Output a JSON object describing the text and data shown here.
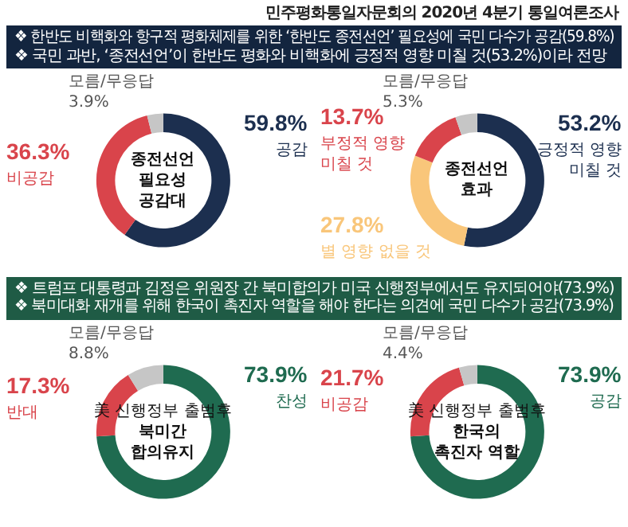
{
  "chart_data": [
    {
      "type": "donut",
      "title": "종전선언\n필요성\n공감대",
      "annotations": [
        "민주평화통일자문회의 2020년 4분기 통일여론조사",
        "❖ 한반도 비핵화와 항구적 평화체제를 위한 ‘한반도 종전선언’ 필요성에 국민 다수가 공감(59.8%)",
        "❖ 국민 과반, ‘종전선언’이 한반도 평화와 비핵화에 긍정적 영향 미칠 것(53.2%)이라 전망"
      ],
      "categories": [
        "공감",
        "비공감",
        "모름/무응답"
      ],
      "values": [
        59.8,
        36.3,
        3.9
      ],
      "colors": [
        "#1c2f4f",
        "#d9444b",
        "#c6c6c6"
      ],
      "value_labels": [
        "59.8%",
        "36.3%",
        "3.9%"
      ]
    },
    {
      "type": "donut",
      "title": "종전선언\n효과",
      "categories": [
        "긍정적 영향\n미칠 것",
        "별 영향 없을 것",
        "부정적 영향\n미칠 것",
        "모름/무응답"
      ],
      "values": [
        53.2,
        27.8,
        13.7,
        5.3
      ],
      "colors": [
        "#1c2f4f",
        "#f9c67a",
        "#d9444b",
        "#c6c6c6"
      ],
      "value_labels": [
        "53.2%",
        "27.8%",
        "13.7%",
        "5.3%"
      ]
    },
    {
      "type": "donut",
      "subtitle": "美 신행정부 출범후",
      "title": "북미간\n합의유지",
      "annotations": [
        "❖ 트럼프 대통령과 김정은 위원장 간 북미합의가 미국 신행정부에서도 유지되어야(73.9%)",
        "❖ 북미대화 재개를 위해 한국이 촉진자 역할을 해야 한다는 의견에 국민 다수가 공감(73.9%)"
      ],
      "categories": [
        "찬성",
        "반대",
        "모름/무응답"
      ],
      "values": [
        73.9,
        17.3,
        8.8
      ],
      "colors": [
        "#1f6b50",
        "#d9444b",
        "#c6c6c6"
      ],
      "value_labels": [
        "73.9%",
        "17.3%",
        "8.8%"
      ]
    },
    {
      "type": "donut",
      "subtitle": "美 신행정부 출범후",
      "title": "한국의\n촉진자 역할",
      "categories": [
        "공감",
        "비공감",
        "모름/무응답"
      ],
      "values": [
        73.9,
        21.7,
        4.4
      ],
      "colors": [
        "#1f6b50",
        "#d9444b",
        "#c6c6c6"
      ],
      "value_labels": [
        "73.9%",
        "21.7%",
        "4.4%"
      ]
    }
  ]
}
